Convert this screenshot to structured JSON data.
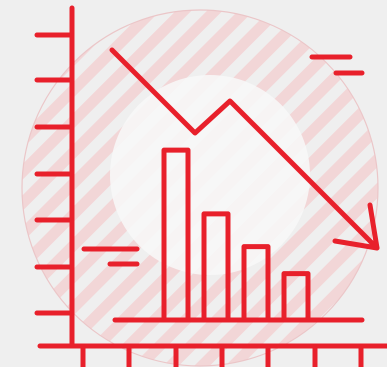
{
  "illustration": {
    "icon_name": "declining-chart-icon",
    "colors": {
      "accent": "#e8202b",
      "background": "#efefef",
      "stripe": "#f2d6d7",
      "halo": "#f7f7f7",
      "ring": "#ebc6c8"
    },
    "bar_levels": [
      0.88,
      0.55,
      0.38,
      0.24
    ],
    "trend": "down"
  }
}
